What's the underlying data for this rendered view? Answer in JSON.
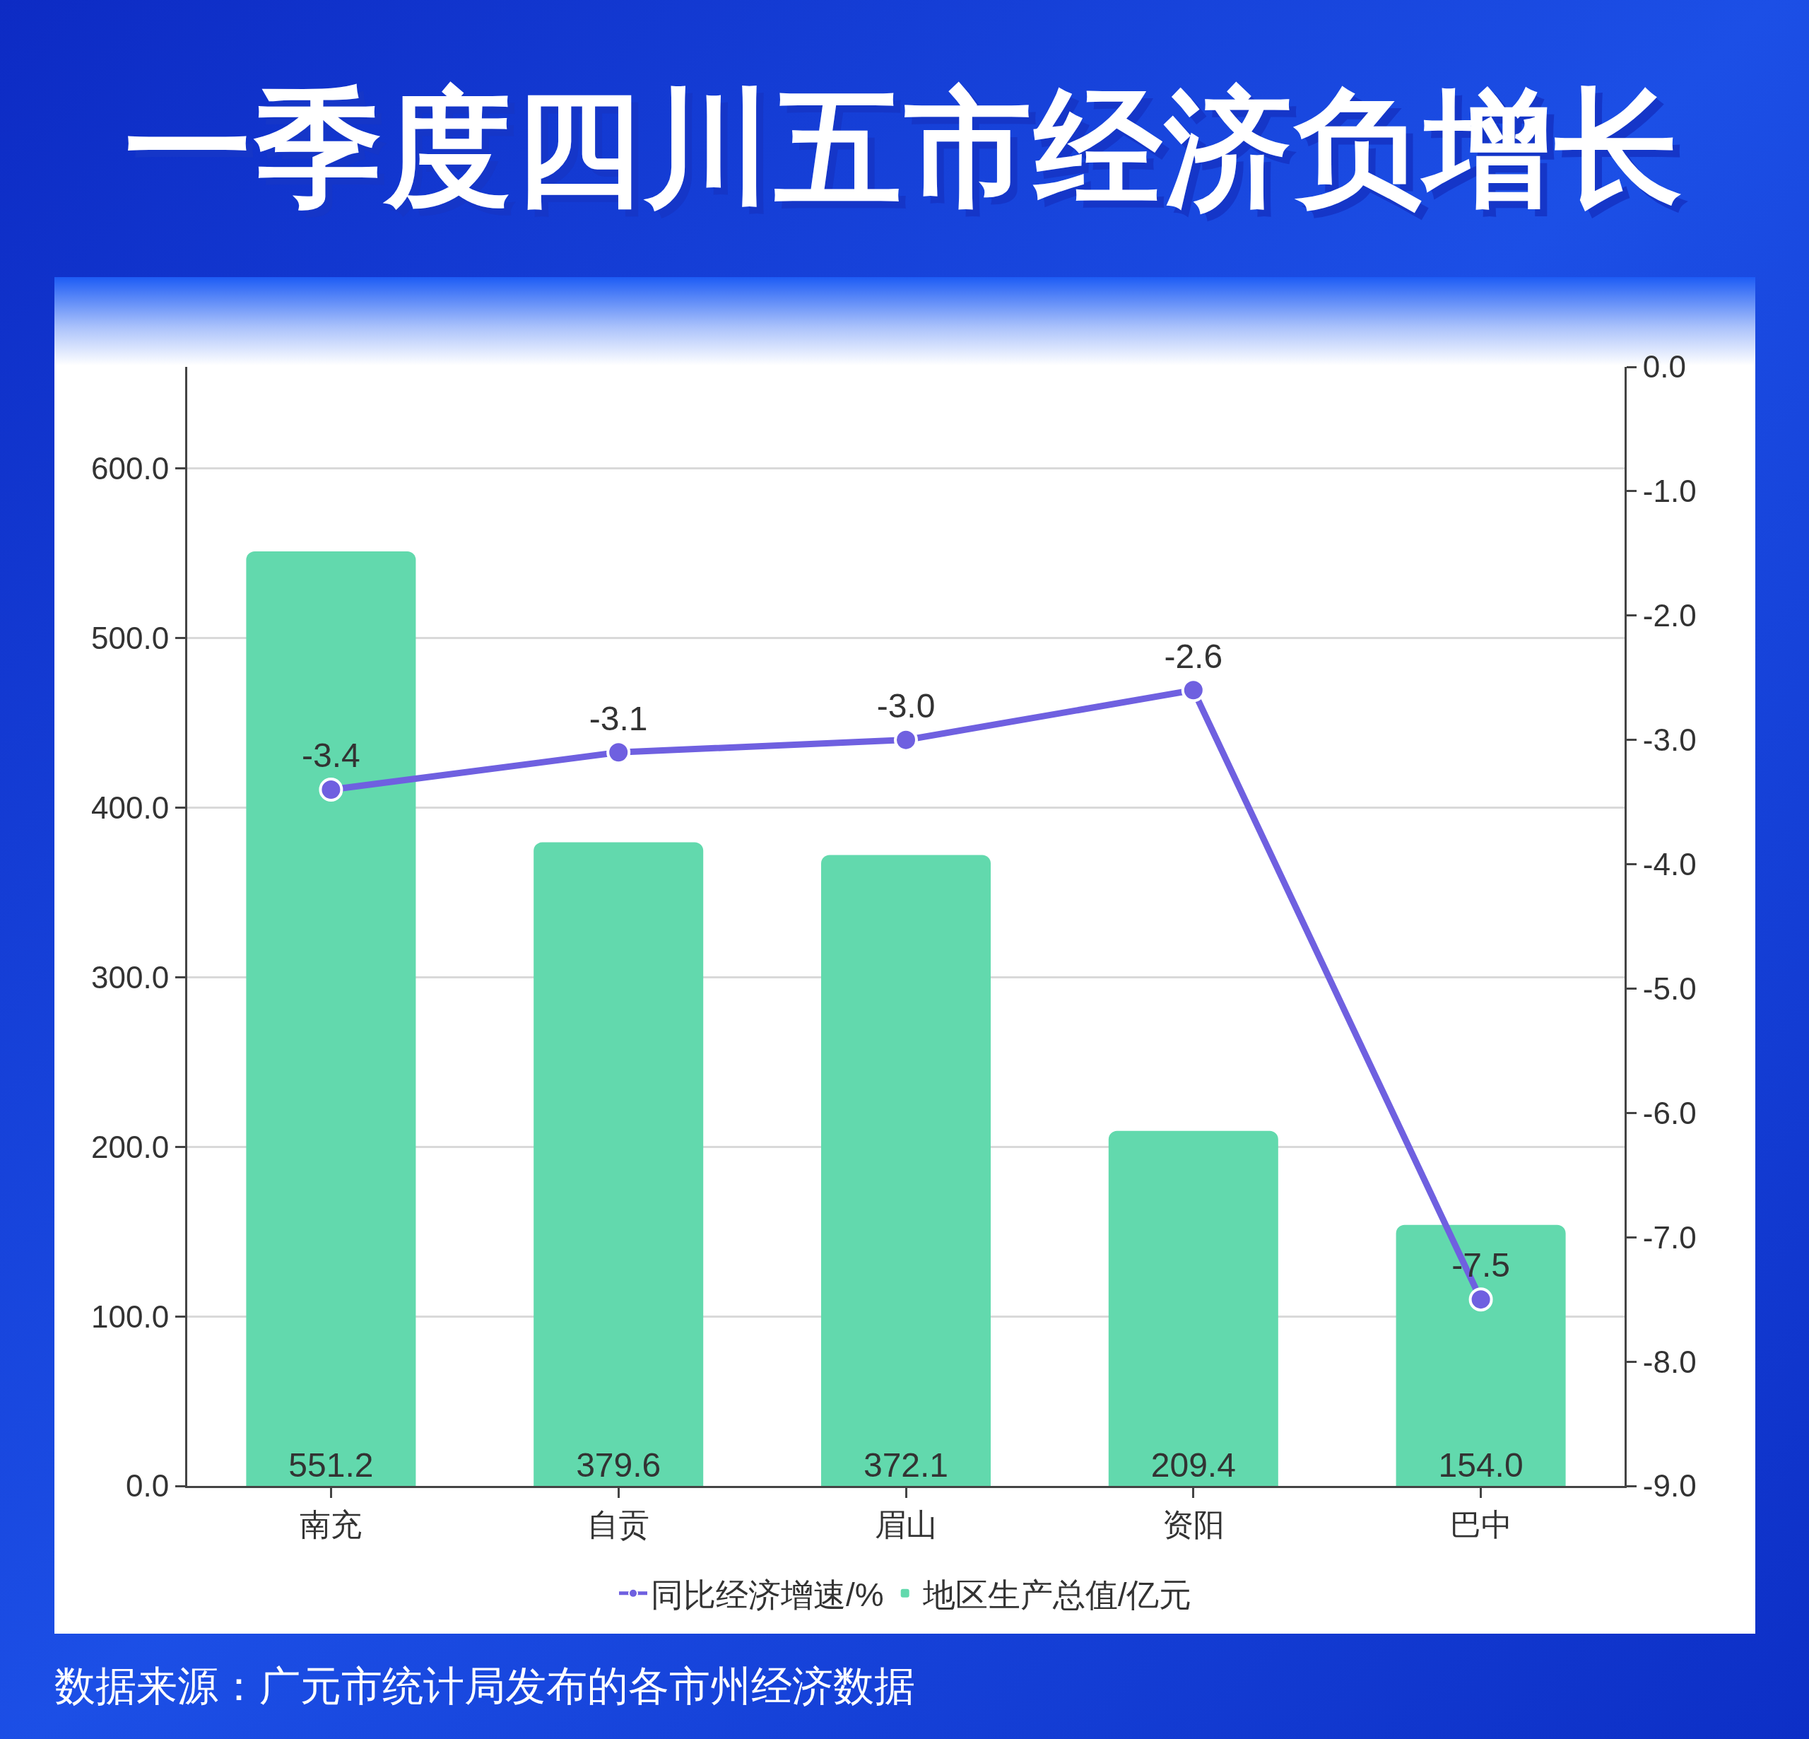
{
  "chart_data": {
    "type": "bar",
    "title": "一季度四川五市经济负增长",
    "categories": [
      "南充",
      "自贡",
      "眉山",
      "资阳",
      "巴中"
    ],
    "series": [
      {
        "name": "同比经济增速/%",
        "type": "line",
        "axis": "y2",
        "color": "#6f60e0",
        "marker": "circle",
        "line_style": "solid",
        "values": [
          -3.4,
          -3.1,
          -3.0,
          -2.6,
          -7.5
        ],
        "value_labels": [
          "-3.4",
          "-3.1",
          "-3.0",
          "-2.6",
          "-7.5"
        ]
      },
      {
        "name": "地区生产总值/亿元",
        "color": "#62d9ad",
        "values": [
          551.2,
          379.6,
          372.1,
          209.4,
          154.0
        ],
        "value_labels": [
          "551.2",
          "379.6",
          "372.1",
          "209.4",
          "154.0"
        ]
      }
    ],
    "ylim": [
      0,
      660
    ],
    "yticks": [
      {
        "value": 0,
        "label": "0.0"
      },
      {
        "value": 100,
        "label": "100.0"
      },
      {
        "value": 200,
        "label": "200.0"
      },
      {
        "value": 300,
        "label": "300.0"
      },
      {
        "value": 400,
        "label": "400.0"
      },
      {
        "value": 500,
        "label": "500.0"
      },
      {
        "value": 600,
        "label": "600.0"
      }
    ],
    "y2lim": [
      -9,
      0
    ],
    "y2ticks": [
      {
        "value": -9,
        "label": "-9.0"
      },
      {
        "value": -8,
        "label": "-8.0"
      },
      {
        "value": -7,
        "label": "-7.0"
      },
      {
        "value": -6,
        "label": "-6.0"
      },
      {
        "value": -5,
        "label": "-5.0"
      },
      {
        "value": -4,
        "label": "-4.0"
      },
      {
        "value": -3,
        "label": "-3.0"
      },
      {
        "value": -2,
        "label": "-2.0"
      },
      {
        "value": -1,
        "label": "-1.0"
      },
      {
        "value": 0,
        "label": "0.0"
      }
    ],
    "grid": "y",
    "legend": "bottom",
    "annotations": [
      "数据来源：广元市统计局发布的各市州经济数据"
    ]
  }
}
